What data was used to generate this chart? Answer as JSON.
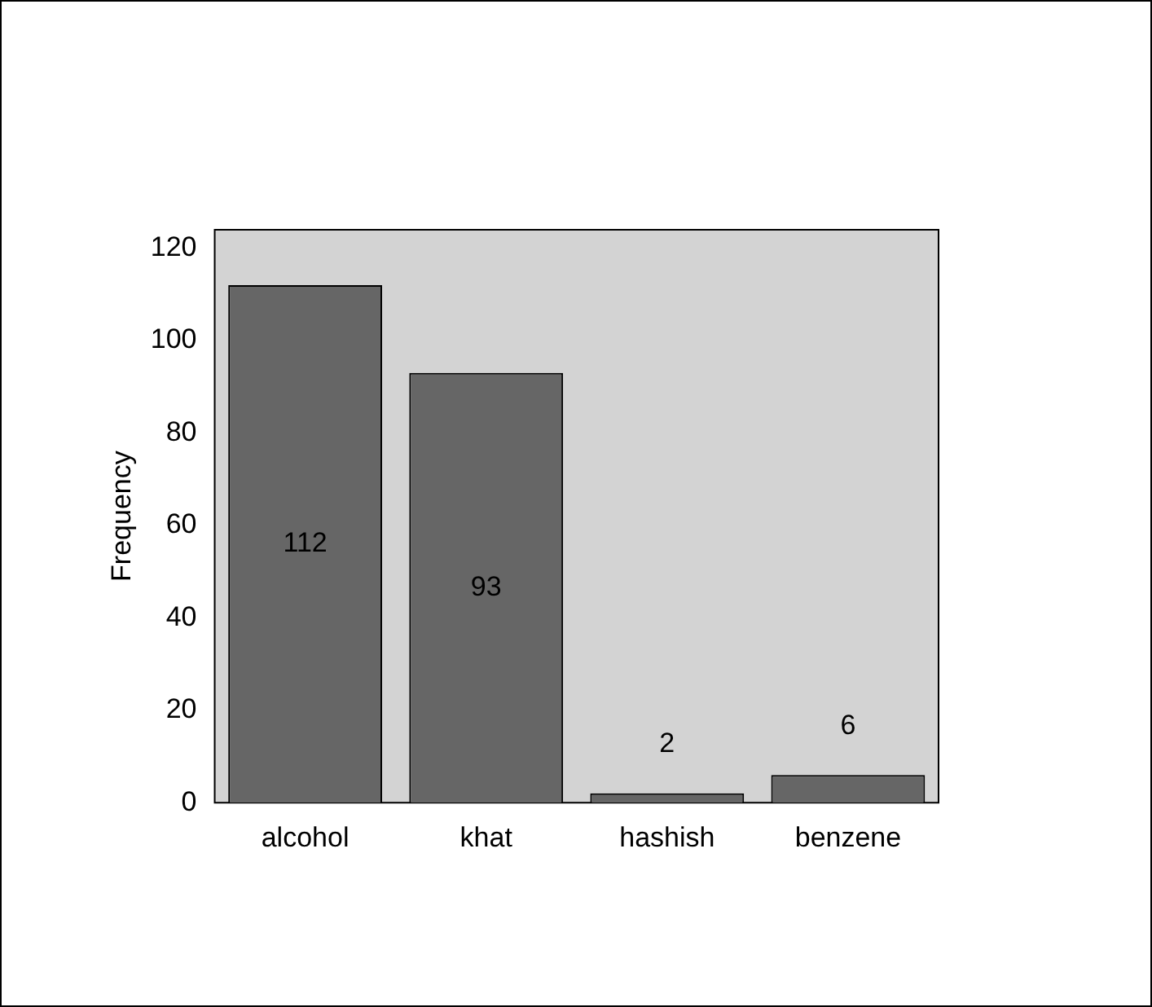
{
  "chart_data": {
    "type": "bar",
    "ylabel": "Frequency",
    "categories": [
      "alcohol",
      "khat",
      "hashish",
      "benzene"
    ],
    "values": [
      112,
      93,
      2,
      6
    ],
    "color": "#666666",
    "ylim": [
      0,
      124
    ],
    "yticks": [
      0,
      20,
      40,
      60,
      80,
      100,
      120
    ],
    "grid": false,
    "legend": false,
    "data_labels": true
  }
}
